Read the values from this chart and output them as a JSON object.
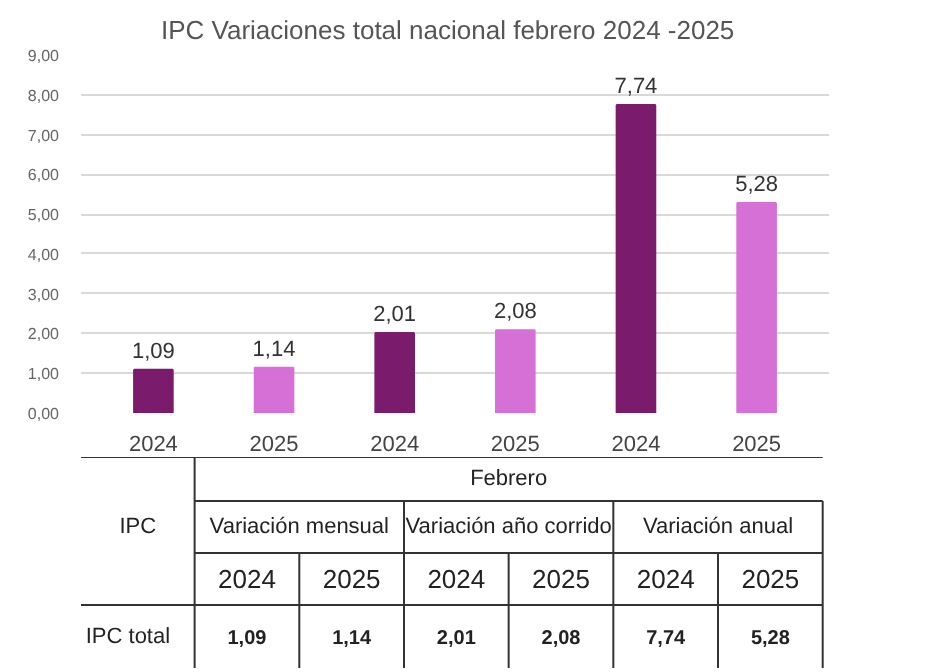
{
  "chart_data": {
    "type": "bar",
    "title": "IPC Variaciones total nacional febrero 2024 -2025",
    "categories": [
      "2024",
      "2025",
      "2024",
      "2025",
      "2024",
      "2025"
    ],
    "values": [
      1.09,
      1.14,
      2.01,
      2.08,
      7.74,
      5.28
    ],
    "colors": [
      "#7a1b6c",
      "#d770d6",
      "#7a1b6c",
      "#d770d6",
      "#7a1b6c",
      "#d770d6"
    ],
    "value_labels": [
      "1,09",
      "1,14",
      "2,01",
      "2,08",
      "7,74",
      "5,28"
    ],
    "ylim": [
      0,
      9
    ],
    "yticks": [
      {
        "value": 0,
        "label": "0,00"
      },
      {
        "value": 1,
        "label": "1,00"
      },
      {
        "value": 2,
        "label": "2,00"
      },
      {
        "value": 3,
        "label": "3,00"
      },
      {
        "value": 4,
        "label": "4,00"
      },
      {
        "value": 5,
        "label": "5,00"
      },
      {
        "value": 6,
        "label": "6,00"
      },
      {
        "value": 7,
        "label": "7,00"
      },
      {
        "value": 8,
        "label": "8,00"
      },
      {
        "value": 9,
        "label": "9,00"
      }
    ],
    "grid": "y",
    "annotations": [
      "IPC",
      "Febrero",
      "Variación mensual",
      "Variación año corrido",
      "Variación anual",
      "IPC total"
    ]
  }
}
